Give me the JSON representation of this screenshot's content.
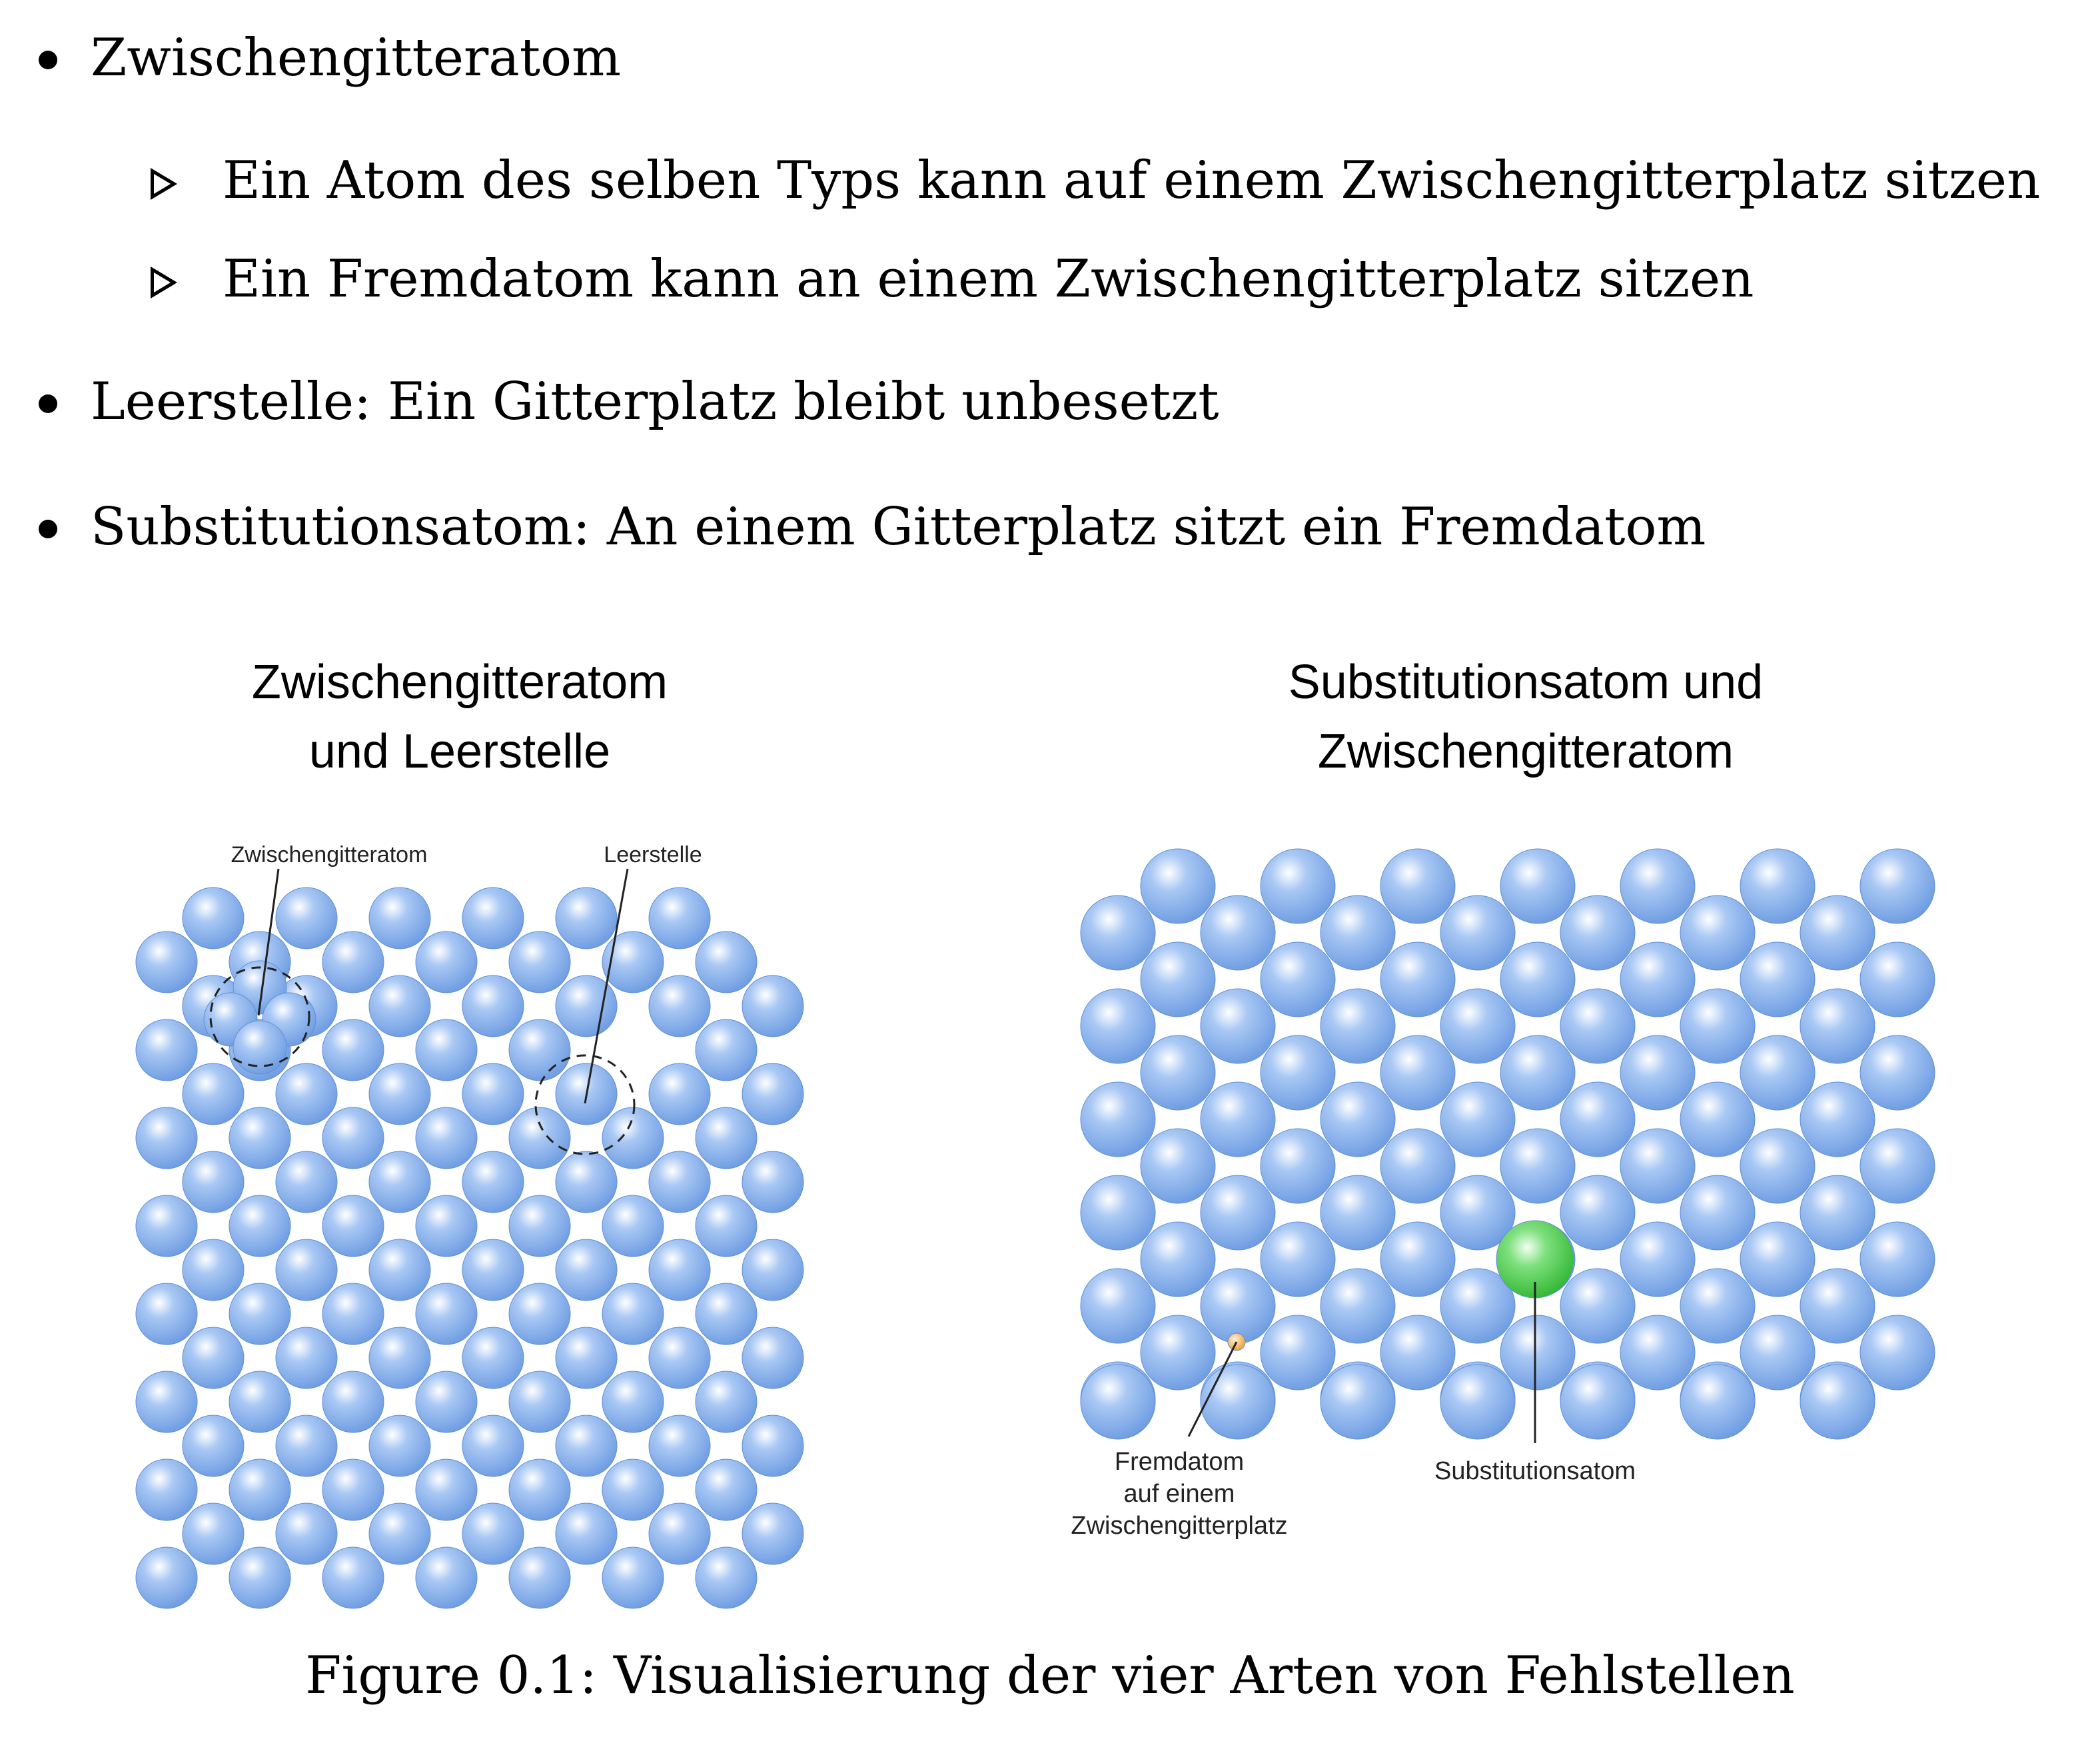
{
  "bullets": [
    {
      "text": "Zwischengitteratom",
      "sub": [
        "Ein Atom des selben Typs kann auf einem Zwischengitterplatz sitzen",
        "Ein Fremdatom kann an einem Zwischengitterplatz sitzen"
      ]
    },
    {
      "text": "Leerstelle: Ein Gitterplatz bleibt unbesetzt"
    },
    {
      "text": "Substitutionsatom: An einem Gitterplatz sitzt ein Fremdatom"
    }
  ],
  "figure_left": {
    "title_line1": "Zwischengitteratom",
    "title_line2": "und Leerstelle",
    "label_interstitial": "Zwischengitteratom",
    "label_vacancy": "Leerstelle"
  },
  "figure_right": {
    "title_line1": "Substitutionsatom und",
    "title_line2": "Zwischengitteratom",
    "label_foreign_line1": "Fremdatom",
    "label_foreign_line2": "auf einem",
    "label_foreign_line3": "Zwischengitterplatz",
    "label_substitution": "Substitutionsatom"
  },
  "caption": "Figure 0.1: Visualisierung der vier Arten von Fehlstellen",
  "colors": {
    "atom_blue": "#7fadeb",
    "atom_green": "#3fc43f",
    "atom_orange": "#f0a030"
  }
}
